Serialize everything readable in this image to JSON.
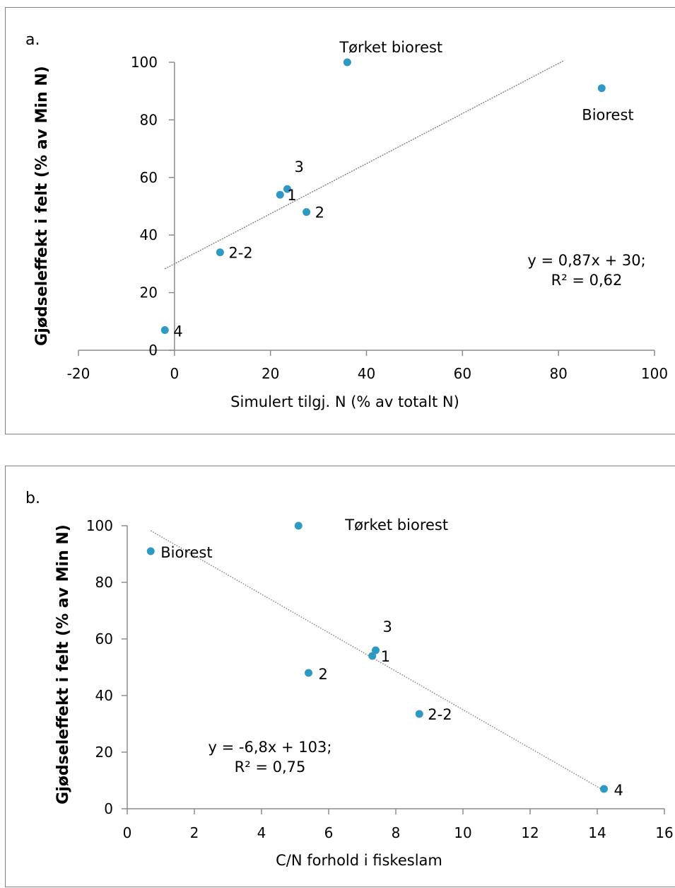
{
  "chart_data": [
    {
      "type": "scatter",
      "panel_label": "a.",
      "title": "",
      "xlabel": "Simulert tilgj. N (% av totalt N)",
      "ylabel": "Gjødseleffekt i felt (% av Min N)",
      "xlim": [
        -20,
        100
      ],
      "ylim": [
        0,
        100
      ],
      "xticks": [
        -20,
        0,
        20,
        40,
        60,
        80,
        100
      ],
      "yticks": [
        0,
        20,
        40,
        60,
        80,
        100
      ],
      "points": [
        {
          "x": 36,
          "y": 100,
          "label": "Tørket biorest"
        },
        {
          "x": 89,
          "y": 91,
          "label": "Biorest"
        },
        {
          "x": 23.5,
          "y": 56,
          "label": "3"
        },
        {
          "x": 22,
          "y": 54,
          "label": "1"
        },
        {
          "x": 27.5,
          "y": 48,
          "label": "2"
        },
        {
          "x": 9.5,
          "y": 34,
          "label": "2-2"
        },
        {
          "x": -2,
          "y": 7,
          "label": "4"
        }
      ],
      "trendline": {
        "slope": 0.87,
        "intercept": 30,
        "x_range": [
          -2,
          81
        ]
      },
      "equation": [
        "y = 0,87x + 30;",
        "R² = 0,62"
      ],
      "grid": false,
      "marker_color": "#2e9ac4"
    },
    {
      "type": "scatter",
      "panel_label": "b.",
      "title": "",
      "xlabel": "C/N forhold i fiskeslam",
      "ylabel": "Gjødseleffekt i felt (% av Min N)",
      "xlim": [
        0,
        16
      ],
      "ylim": [
        0,
        100
      ],
      "xticks": [
        0,
        2,
        4,
        6,
        8,
        10,
        12,
        14,
        16
      ],
      "yticks": [
        0,
        20,
        40,
        60,
        80,
        100
      ],
      "points": [
        {
          "x": 5.1,
          "y": 100,
          "label": "Tørket biorest"
        },
        {
          "x": 0.7,
          "y": 91,
          "label": "Biorest"
        },
        {
          "x": 7.4,
          "y": 56,
          "label": "3"
        },
        {
          "x": 7.3,
          "y": 54,
          "label": "1"
        },
        {
          "x": 5.4,
          "y": 48,
          "label": "2"
        },
        {
          "x": 8.7,
          "y": 33.5,
          "label": "2-2"
        },
        {
          "x": 14.2,
          "y": 7,
          "label": "4"
        }
      ],
      "trendline": {
        "slope": -6.8,
        "intercept": 103,
        "x_range": [
          0.7,
          14.2
        ]
      },
      "equation": [
        "y = -6,8x + 103;",
        "R² = 0,75"
      ],
      "grid": false,
      "marker_color": "#2e9ac4"
    }
  ]
}
